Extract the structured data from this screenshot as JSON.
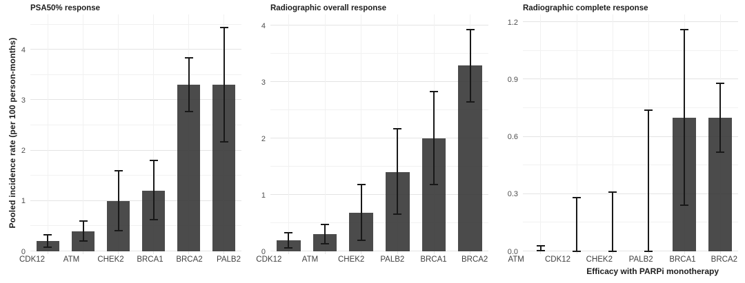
{
  "figure": {
    "y_axis_label": "Pooled incidence rate (per 100 person-months)",
    "x_axis_label": "Efficacy with PARPi monotherapy",
    "background_color": "#ffffff",
    "bar_color": "#323232",
    "bar_opacity": "0.88",
    "error_bar_color": "#181818",
    "grid_major_color": "#e3e3e3",
    "grid_minor_color": "#f1f1f1",
    "tick_label_color": "#4d4d4d",
    "title_color": "#1c1c1c"
  },
  "chart_data": [
    {
      "type": "bar",
      "title": "PSA50% response",
      "ylabel": "Pooled incidence rate (per 100 person-months)",
      "xlabel": "",
      "categories": [
        "CDK12",
        "ATM",
        "CHEK2",
        "BRCA1",
        "BRCA2",
        "PALB2"
      ],
      "values": [
        0.2,
        0.4,
        1.0,
        1.2,
        3.3,
        3.3
      ],
      "error_low": [
        0.08,
        0.21,
        0.41,
        0.63,
        2.78,
        2.17
      ],
      "error_high": [
        0.33,
        0.6,
        1.6,
        1.8,
        3.84,
        4.44
      ],
      "yticks": [
        0,
        1,
        2,
        3,
        4
      ],
      "ytick_labels": [
        "0",
        "1",
        "2",
        "3",
        "4"
      ],
      "ylim": [
        0,
        4.7
      ],
      "grid": "on",
      "legend": "none",
      "error_bars": "95% CI whiskers with caps"
    },
    {
      "type": "bar",
      "title": "Radiographic overall response",
      "ylabel": "",
      "xlabel": "",
      "categories": [
        "CDK12",
        "ATM",
        "CHEK2",
        "PALB2",
        "BRCA1",
        "BRCA2"
      ],
      "values": [
        0.2,
        0.3,
        0.69,
        1.4,
        2.0,
        3.3
      ],
      "error_low": [
        0.06,
        0.13,
        0.2,
        0.66,
        1.18,
        2.65
      ],
      "error_high": [
        0.33,
        0.48,
        1.18,
        2.17,
        2.83,
        3.93
      ],
      "yticks": [
        0,
        1,
        2,
        3,
        4
      ],
      "ytick_labels": [
        "0",
        "1",
        "2",
        "3",
        "4"
      ],
      "ylim": [
        0,
        4.2
      ],
      "grid": "on",
      "legend": "none",
      "error_bars": "95% CI whiskers with caps"
    },
    {
      "type": "bar",
      "title": "Radiographic complete response",
      "ylabel": "",
      "xlabel": "Efficacy with PARPi monotherapy",
      "categories": [
        "ATM",
        "CDK12",
        "CHEK2",
        "PALB2",
        "BRCA1",
        "BRCA2"
      ],
      "values": [
        0,
        0,
        0,
        0,
        0.7,
        0.7
      ],
      "error_low": [
        0.005,
        0.0,
        0.0,
        0.0,
        0.24,
        0.52
      ],
      "error_high": [
        0.03,
        0.28,
        0.31,
        0.74,
        1.16,
        0.88
      ],
      "yticks": [
        0,
        0.3,
        0.6,
        0.9,
        1.2
      ],
      "ytick_labels": [
        "0.0",
        "0.3",
        "0.6",
        "0.9",
        "1.2"
      ],
      "ylim": [
        0,
        1.24
      ],
      "grid": "on",
      "legend": "none",
      "error_bars": "95% CI whiskers with caps"
    }
  ]
}
